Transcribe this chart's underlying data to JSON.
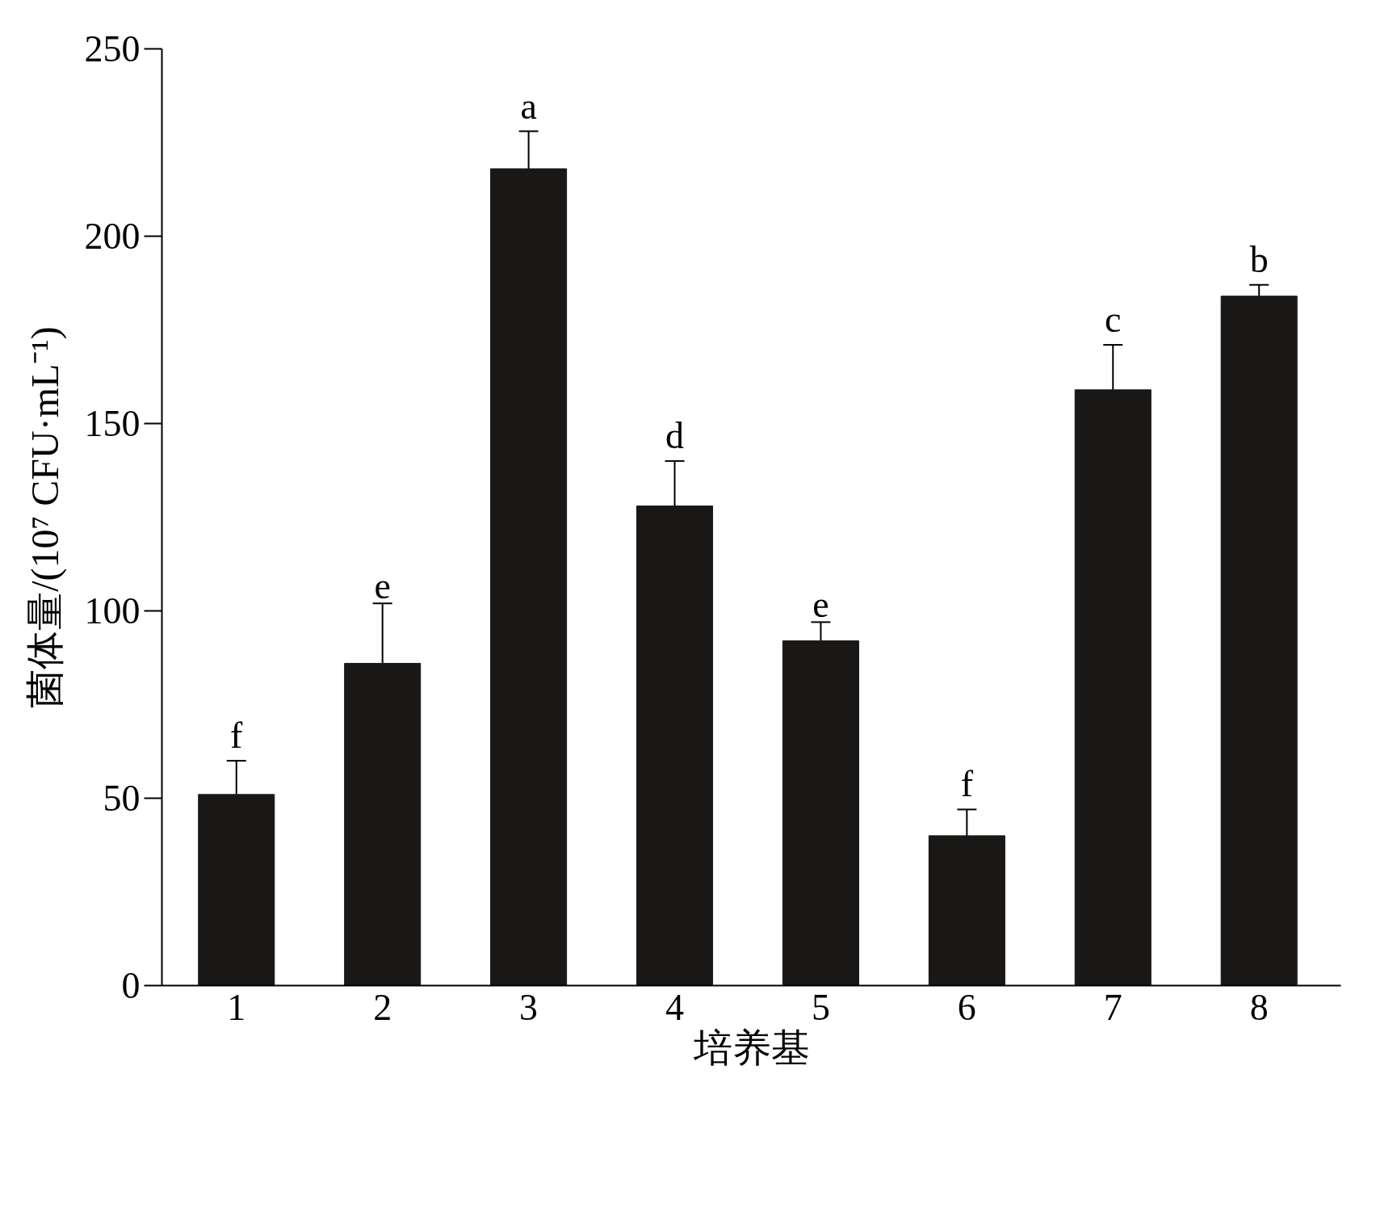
{
  "chart_data": {
    "type": "bar",
    "xlabel": "培养基",
    "ylabel": "菌体量/(10⁷ CFU·mL⁻¹)",
    "categories": [
      "1",
      "2",
      "3",
      "4",
      "5",
      "6",
      "7",
      "8"
    ],
    "values": [
      51,
      86,
      218,
      128,
      92,
      40,
      159,
      184
    ],
    "errors": [
      9,
      16,
      10,
      12,
      5,
      7,
      12,
      3
    ],
    "color": "#1a1816",
    "ylim": [
      0,
      250
    ],
    "yticks": [
      0,
      50,
      100,
      150,
      200,
      250
    ],
    "grid": false,
    "annotations": [
      {
        "text": "f",
        "x": "1",
        "y": 60
      },
      {
        "text": "e",
        "x": "2",
        "y": 102
      },
      {
        "text": "a",
        "x": "3",
        "y": 228
      },
      {
        "text": "d",
        "x": "4",
        "y": 140
      },
      {
        "text": "e",
        "x": "5",
        "y": 97
      },
      {
        "text": "f",
        "x": "6",
        "y": 47
      },
      {
        "text": "c",
        "x": "7",
        "y": 171
      },
      {
        "text": "b",
        "x": "8",
        "y": 187
      }
    ]
  }
}
